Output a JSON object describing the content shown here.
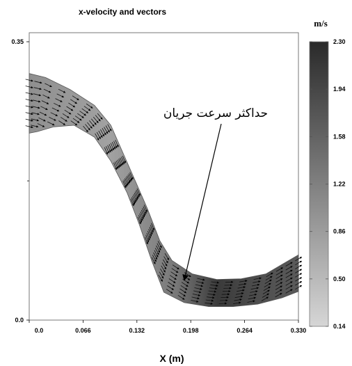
{
  "chart_data": {
    "type": "vector-field",
    "title": "x-velocity and vectors",
    "xlabel": "X (m)",
    "ylabel": "",
    "xlim": [
      0,
      0.33
    ],
    "ylim": [
      0,
      0.35
    ],
    "x_ticks": [
      "0.0",
      "0.066",
      "0.132",
      "0.198",
      "0.264",
      "0.330"
    ],
    "y_ticks": [
      "0.0",
      "0.35"
    ],
    "colorbar": {
      "unit": "m/s",
      "ticks": [
        "2.30",
        "1.94",
        "1.58",
        "1.22",
        "0.86",
        "0.50",
        "0.14"
      ],
      "min": 0.14,
      "max": 2.3,
      "colors": [
        "#d6d6d6",
        "#2a2a2a"
      ]
    },
    "channel": {
      "upper_wall": [
        [
          0.0,
          0.31
        ],
        [
          0.02,
          0.305
        ],
        [
          0.05,
          0.29
        ],
        [
          0.08,
          0.27
        ],
        [
          0.1,
          0.245
        ],
        [
          0.115,
          0.21
        ],
        [
          0.13,
          0.175
        ],
        [
          0.145,
          0.14
        ],
        [
          0.16,
          0.1
        ],
        [
          0.175,
          0.075
        ],
        [
          0.2,
          0.058
        ],
        [
          0.23,
          0.051
        ],
        [
          0.26,
          0.052
        ],
        [
          0.29,
          0.058
        ],
        [
          0.31,
          0.07
        ],
        [
          0.33,
          0.082
        ]
      ],
      "lower_wall": [
        [
          0.33,
          0.036
        ],
        [
          0.31,
          0.028
        ],
        [
          0.28,
          0.02
        ],
        [
          0.25,
          0.017
        ],
        [
          0.22,
          0.017
        ],
        [
          0.19,
          0.022
        ],
        [
          0.165,
          0.035
        ],
        [
          0.15,
          0.075
        ],
        [
          0.135,
          0.12
        ],
        [
          0.12,
          0.16
        ],
        [
          0.1,
          0.2
        ],
        [
          0.08,
          0.23
        ],
        [
          0.055,
          0.245
        ],
        [
          0.03,
          0.243
        ],
        [
          0.01,
          0.237
        ],
        [
          0.0,
          0.235
        ]
      ]
    },
    "annotation": {
      "text": "حداکثر سرعت جریان",
      "arrow_target": [
        0.19,
        0.05
      ]
    }
  }
}
